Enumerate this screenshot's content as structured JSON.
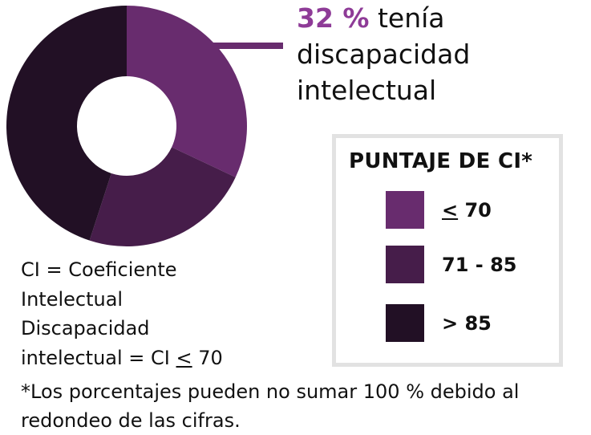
{
  "chart_data": {
    "type": "pie",
    "subtype": "donut",
    "title": "PUNTAJE DE CI*",
    "categories": [
      "≤ 70",
      "71 - 85",
      "> 85"
    ],
    "values": [
      32,
      23,
      45
    ],
    "colors": [
      "#682c6e",
      "#461d4a",
      "#221025"
    ],
    "annotations": [
      "32 % tenía discapacidad intelectual"
    ],
    "legend_position": "right"
  },
  "headline": {
    "percent": "32 %",
    "line1_rest": " tenía",
    "line2": "discapacidad",
    "line3": "intelectual"
  },
  "legend": {
    "title": "PUNTAJE DE CI*",
    "items": [
      {
        "symbol": "<",
        "label": " 70",
        "color": "#682c6e"
      },
      {
        "label": "71 - 85",
        "color": "#461d4a"
      },
      {
        "label": "> 85",
        "color": "#221025"
      }
    ]
  },
  "notes": {
    "line1": "CI = Coeficiente",
    "line2": "Intelectual",
    "line3": "Discapacidad",
    "line4_pre": "intelectual = CI ",
    "line4_symbol": "<",
    "line4_post": " 70"
  },
  "footnote": {
    "line1": "*Los porcentajes pueden no sumar 100 % debido al",
    "line2": "redondeo de las cifras."
  },
  "colors": {
    "accent": "#8e3b97",
    "segment_low": "#682c6e",
    "segment_mid": "#461d4a",
    "segment_high": "#221025",
    "legend_border": "#e2e2e2"
  }
}
